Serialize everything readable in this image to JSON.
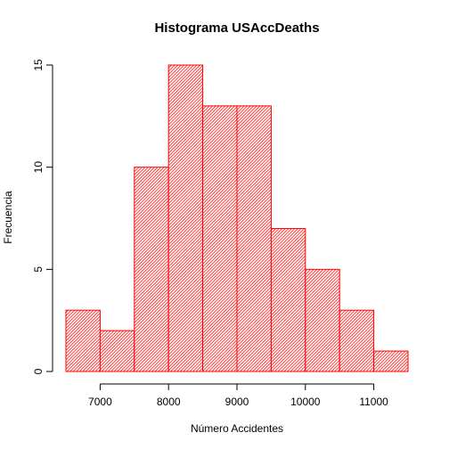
{
  "chart_data": {
    "type": "bar",
    "title": "Histograma USAccDeaths",
    "xlabel": "Número Accidentes",
    "ylabel": "Frecuencia",
    "bin_edges": [
      6500,
      7000,
      7500,
      8000,
      8500,
      9000,
      9500,
      10000,
      10500,
      11000,
      11500
    ],
    "values": [
      3,
      2,
      10,
      15,
      13,
      13,
      7,
      5,
      3,
      1
    ],
    "xlim": [
      6500,
      11500
    ],
    "ylim": [
      0,
      15
    ],
    "x_ticks": [
      7000,
      8000,
      9000,
      10000,
      11000
    ],
    "y_ticks": [
      0,
      5,
      10,
      15
    ],
    "grid": false,
    "bar_color": "#ff0000",
    "hatch": "diagonal"
  }
}
